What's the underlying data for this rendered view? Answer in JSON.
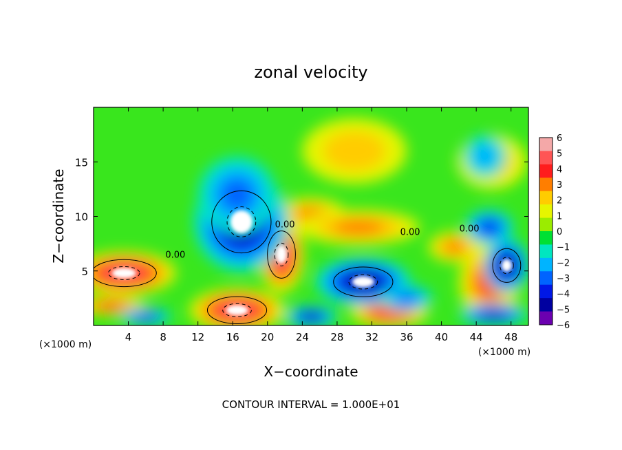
{
  "chart_data": {
    "type": "heatmap",
    "title": "zonal velocity",
    "xlabel": "X−coordinate",
    "ylabel": "Z−coordinate",
    "x_unit": "(×1000 m)",
    "y_unit": "(×1000 m)",
    "xlim": [
      0,
      50
    ],
    "ylim": [
      0,
      20
    ],
    "x_ticks": [
      4,
      8,
      12,
      16,
      20,
      24,
      28,
      32,
      36,
      40,
      44,
      48
    ],
    "y_ticks": [
      5,
      10,
      15
    ],
    "x_tick_labels": [
      "4",
      "8",
      "12",
      "16",
      "20",
      "24",
      "28",
      "32",
      "36",
      "40",
      "44",
      "48"
    ],
    "y_tick_labels": [
      "5",
      "10",
      "15"
    ],
    "colorbar": {
      "min": -6,
      "max": 6,
      "labels": [
        "6",
        "5",
        "4",
        "3",
        "2",
        "1",
        "0",
        "−1",
        "−2",
        "−3",
        "−4",
        "−5",
        "−6"
      ],
      "colors": [
        "#f4a8a8",
        "#ff5555",
        "#ff1d1d",
        "#ff7e00",
        "#ffcc00",
        "#e6f500",
        "#9bec00",
        "#00e033",
        "#00e6c0",
        "#00b4ff",
        "#0064ff",
        "#0018e6",
        "#0000a0",
        "#6b00b0"
      ]
    },
    "contour_labels": [
      {
        "text": "0.00",
        "x": 9.4,
        "y": 6.2
      },
      {
        "text": "0.00",
        "x": 22.0,
        "y": 9.0
      },
      {
        "text": "0.00",
        "x": 36.4,
        "y": 8.3
      },
      {
        "text": "0.00",
        "x": 43.2,
        "y": 8.6
      }
    ],
    "features": [
      {
        "kind": "positive",
        "x": 21.6,
        "y": 6.5,
        "rx": 2.6,
        "ry": 3.5,
        "value": 6
      },
      {
        "kind": "positive",
        "x": 3.5,
        "y": 4.8,
        "rx": 6.0,
        "ry": 2.0,
        "value": 6
      },
      {
        "kind": "positive",
        "x": 16.5,
        "y": 1.4,
        "rx": 5.5,
        "ry": 2.0,
        "value": 6
      },
      {
        "kind": "positive",
        "x": 34.0,
        "y": 1.2,
        "rx": 4.5,
        "ry": 1.4,
        "value": 5
      },
      {
        "kind": "positive",
        "x": 25.0,
        "y": 10.2,
        "rx": 4.0,
        "ry": 1.5,
        "value": 3
      },
      {
        "kind": "positive",
        "x": 30.5,
        "y": 9.0,
        "rx": 7.0,
        "ry": 1.6,
        "value": 3
      },
      {
        "kind": "positive",
        "x": 41.5,
        "y": 7.2,
        "rx": 3.0,
        "ry": 1.4,
        "value": 3
      },
      {
        "kind": "positive",
        "x": 45.5,
        "y": 4.0,
        "rx": 3.5,
        "ry": 3.5,
        "value": 4
      },
      {
        "kind": "positive",
        "x": 2.0,
        "y": 1.8,
        "rx": 4.0,
        "ry": 0.9,
        "value": 4
      },
      {
        "kind": "positive",
        "x": 45.8,
        "y": 15.0,
        "rx": 4.0,
        "ry": 2.5,
        "value": 2
      },
      {
        "kind": "positive",
        "x": 30.0,
        "y": 16.0,
        "rx": 6.0,
        "ry": 3.0,
        "value": 2
      },
      {
        "kind": "negative",
        "x": 17.0,
        "y": 9.5,
        "rx": 5.5,
        "ry": 4.6,
        "value": -6
      },
      {
        "kind": "negative",
        "x": 31.0,
        "y": 4.0,
        "rx": 5.5,
        "ry": 2.2,
        "value": -6
      },
      {
        "kind": "negative",
        "x": 47.5,
        "y": 5.5,
        "rx": 2.6,
        "ry": 2.5,
        "value": -6
      },
      {
        "kind": "negative",
        "x": 46.0,
        "y": 1.0,
        "rx": 4.0,
        "ry": 1.0,
        "value": -5
      },
      {
        "kind": "negative",
        "x": 25.0,
        "y": 0.8,
        "rx": 3.0,
        "ry": 1.0,
        "value": -5
      },
      {
        "kind": "negative",
        "x": 6.0,
        "y": 0.8,
        "rx": 3.0,
        "ry": 0.8,
        "value": -4
      },
      {
        "kind": "negative",
        "x": 16.5,
        "y": 12.0,
        "rx": 4.5,
        "ry": 3.5,
        "value": -3
      },
      {
        "kind": "negative",
        "x": 45.5,
        "y": 9.0,
        "rx": 2.8,
        "ry": 1.6,
        "value": -4
      },
      {
        "kind": "negative",
        "x": 45.0,
        "y": 15.5,
        "rx": 2.5,
        "ry": 2.0,
        "value": -2
      },
      {
        "kind": "negative",
        "x": 36.0,
        "y": 2.5,
        "rx": 3.0,
        "ry": 1.2,
        "value": -3
      }
    ]
  },
  "footer": {
    "contour_interval": "CONTOUR INTERVAL = 1.000E+01"
  }
}
